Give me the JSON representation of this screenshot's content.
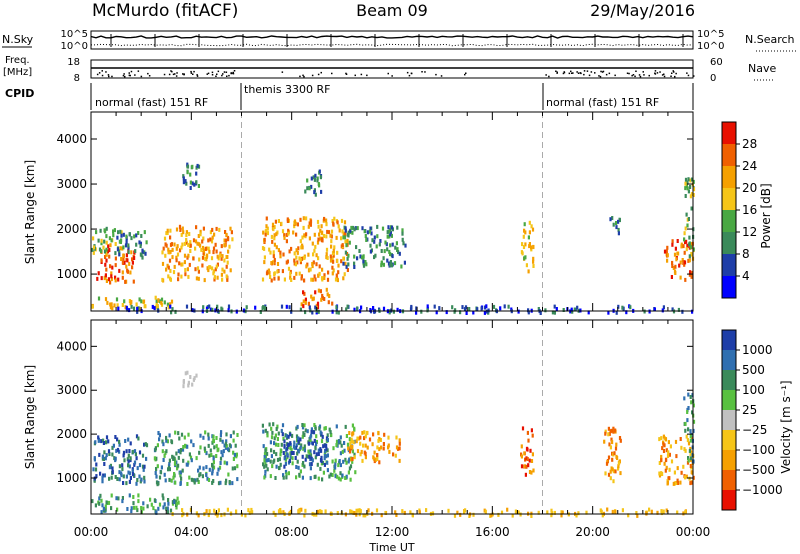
{
  "header": {
    "station": "McMurdo (fitACF)",
    "beam": "Beam 09",
    "date": "29/May/2016"
  },
  "top_panels": {
    "nsky_label": "N.Sky",
    "nsearch_label": "N.Search",
    "freq_label_1": "Freq.",
    "freq_label_2": "[MHz]",
    "nave_label": "Nave",
    "cpid_label": "CPID",
    "nsky_ticks": [
      "10^5",
      "10^0"
    ],
    "nsearch_ticks": [
      "10^5",
      "10^0"
    ],
    "freq_ticks": [
      "18",
      "8"
    ],
    "nave_ticks": [
      "60",
      "0"
    ]
  },
  "cpid_modes": [
    {
      "label": "normal (fast) 151 RF",
      "start_h": 0,
      "end_h": 6
    },
    {
      "label": "themis 3300 RF",
      "start_h": 6,
      "end_h": 18
    },
    {
      "label": "normal (fast) 151 RF",
      "start_h": 18,
      "end_h": 24
    }
  ],
  "colors": {
    "power": [
      "#0000ff",
      "#1e3ea8",
      "#3a8a5a",
      "#49a843",
      "#f5c518",
      "#f5a000",
      "#f06000",
      "#e81000"
    ],
    "velocity_pos": [
      "#1e3ea8",
      "#2f6fb0",
      "#3a8a5a",
      "#58c040"
    ],
    "velocity_neg": [
      "#f5c518",
      "#f5a000",
      "#f06000",
      "#e81000"
    ],
    "ground": "#c0c0c0"
  },
  "power_colorbar": {
    "label": "Power [dB]",
    "ticks": [
      "28",
      "24",
      "20",
      "16",
      "12",
      "8",
      "4"
    ]
  },
  "velocity_colorbar": {
    "label": "Velocity [m s⁻¹]",
    "ticks": [
      "1000",
      "500",
      "100",
      "25",
      "−25",
      "−100",
      "−500",
      "−1000"
    ]
  },
  "chart_data": [
    {
      "type": "heatmap",
      "name": "power",
      "ylabel": "Slant Range [km]",
      "xlabel": "Time UT",
      "xlim": [
        0,
        24
      ],
      "ylim": [
        180,
        4600
      ],
      "x_ticks": [
        "00:00",
        "04:00",
        "08:00",
        "12:00",
        "16:00",
        "20:00",
        "00:00"
      ],
      "y_ticks": [
        1000,
        2000,
        3000,
        4000
      ],
      "regions": [
        {
          "t0": 0.0,
          "t1": 3.2,
          "r0": 250,
          "r1": 520,
          "level": 4
        },
        {
          "t0": 0.2,
          "t1": 1.7,
          "r0": 850,
          "r1": 1700,
          "level": 6
        },
        {
          "t0": 0.0,
          "t1": 1.2,
          "r0": 1500,
          "r1": 2100,
          "level": 3
        },
        {
          "t0": 1.0,
          "t1": 2.2,
          "r0": 1400,
          "r1": 2000,
          "level": 2
        },
        {
          "t0": 2.8,
          "t1": 5.6,
          "r0": 900,
          "r1": 2100,
          "level": 5
        },
        {
          "t0": 3.6,
          "t1": 4.3,
          "r0": 2800,
          "r1": 3500,
          "level": 2
        },
        {
          "t0": 6.8,
          "t1": 10.2,
          "r0": 900,
          "r1": 2300,
          "level": 5
        },
        {
          "t0": 8.3,
          "t1": 9.6,
          "r0": 300,
          "r1": 700,
          "level": 6
        },
        {
          "t0": 8.5,
          "t1": 9.2,
          "r0": 2800,
          "r1": 3400,
          "level": 2
        },
        {
          "t0": 10.0,
          "t1": 12.5,
          "r0": 1200,
          "r1": 2100,
          "level": 2
        },
        {
          "t0": 17.1,
          "t1": 17.6,
          "r0": 1100,
          "r1": 2200,
          "level": 4
        },
        {
          "t0": 20.6,
          "t1": 21.1,
          "r0": 1900,
          "r1": 2300,
          "level": 2
        },
        {
          "t0": 22.8,
          "t1": 24.0,
          "r0": 900,
          "r1": 1800,
          "level": 6
        },
        {
          "t0": 23.6,
          "t1": 24.0,
          "r0": 1400,
          "r1": 3200,
          "level": 3
        },
        {
          "t0": 1.0,
          "t1": 24.0,
          "r0": 180,
          "r1": 330,
          "level": 1
        }
      ]
    },
    {
      "type": "heatmap",
      "name": "velocity",
      "ylabel": "Slant Range [km]",
      "xlabel": "Time UT",
      "xlim": [
        0,
        24
      ],
      "ylim": [
        180,
        4600
      ],
      "x_ticks": [
        "00:00",
        "04:00",
        "08:00",
        "12:00",
        "16:00",
        "20:00",
        "00:00"
      ],
      "y_ticks": [
        1000,
        2000,
        3000,
        4000
      ],
      "regions": [
        {
          "t0": 0.0,
          "t1": 3.5,
          "r0": 250,
          "r1": 650,
          "kind": "pos",
          "level": 2
        },
        {
          "t0": 0.0,
          "t1": 2.2,
          "r0": 900,
          "r1": 2000,
          "kind": "pos",
          "level": 1
        },
        {
          "t0": 2.5,
          "t1": 5.8,
          "r0": 900,
          "r1": 2100,
          "kind": "pos",
          "level": 2
        },
        {
          "t0": 3.6,
          "t1": 4.2,
          "r0": 3100,
          "r1": 3500,
          "kind": "gray",
          "level": 0
        },
        {
          "t0": 6.8,
          "t1": 10.5,
          "r0": 1000,
          "r1": 2300,
          "kind": "pos",
          "level": 2
        },
        {
          "t0": 7.6,
          "t1": 9.4,
          "r0": 1300,
          "r1": 2100,
          "kind": "pos",
          "level": 0
        },
        {
          "t0": 10.2,
          "t1": 12.3,
          "r0": 1400,
          "r1": 2100,
          "kind": "neg",
          "level": 1
        },
        {
          "t0": 17.1,
          "t1": 17.6,
          "r0": 1100,
          "r1": 2200,
          "kind": "neg",
          "level": 2
        },
        {
          "t0": 20.4,
          "t1": 21.1,
          "r0": 900,
          "r1": 2200,
          "kind": "neg",
          "level": 1
        },
        {
          "t0": 22.6,
          "t1": 24.0,
          "r0": 900,
          "r1": 2000,
          "kind": "neg",
          "level": 1
        },
        {
          "t0": 23.6,
          "t1": 24.0,
          "r0": 1400,
          "r1": 3000,
          "kind": "pos",
          "level": 2
        },
        {
          "t0": 3.0,
          "t1": 24.0,
          "r0": 180,
          "r1": 330,
          "kind": "neg",
          "level": 0
        }
      ]
    }
  ]
}
